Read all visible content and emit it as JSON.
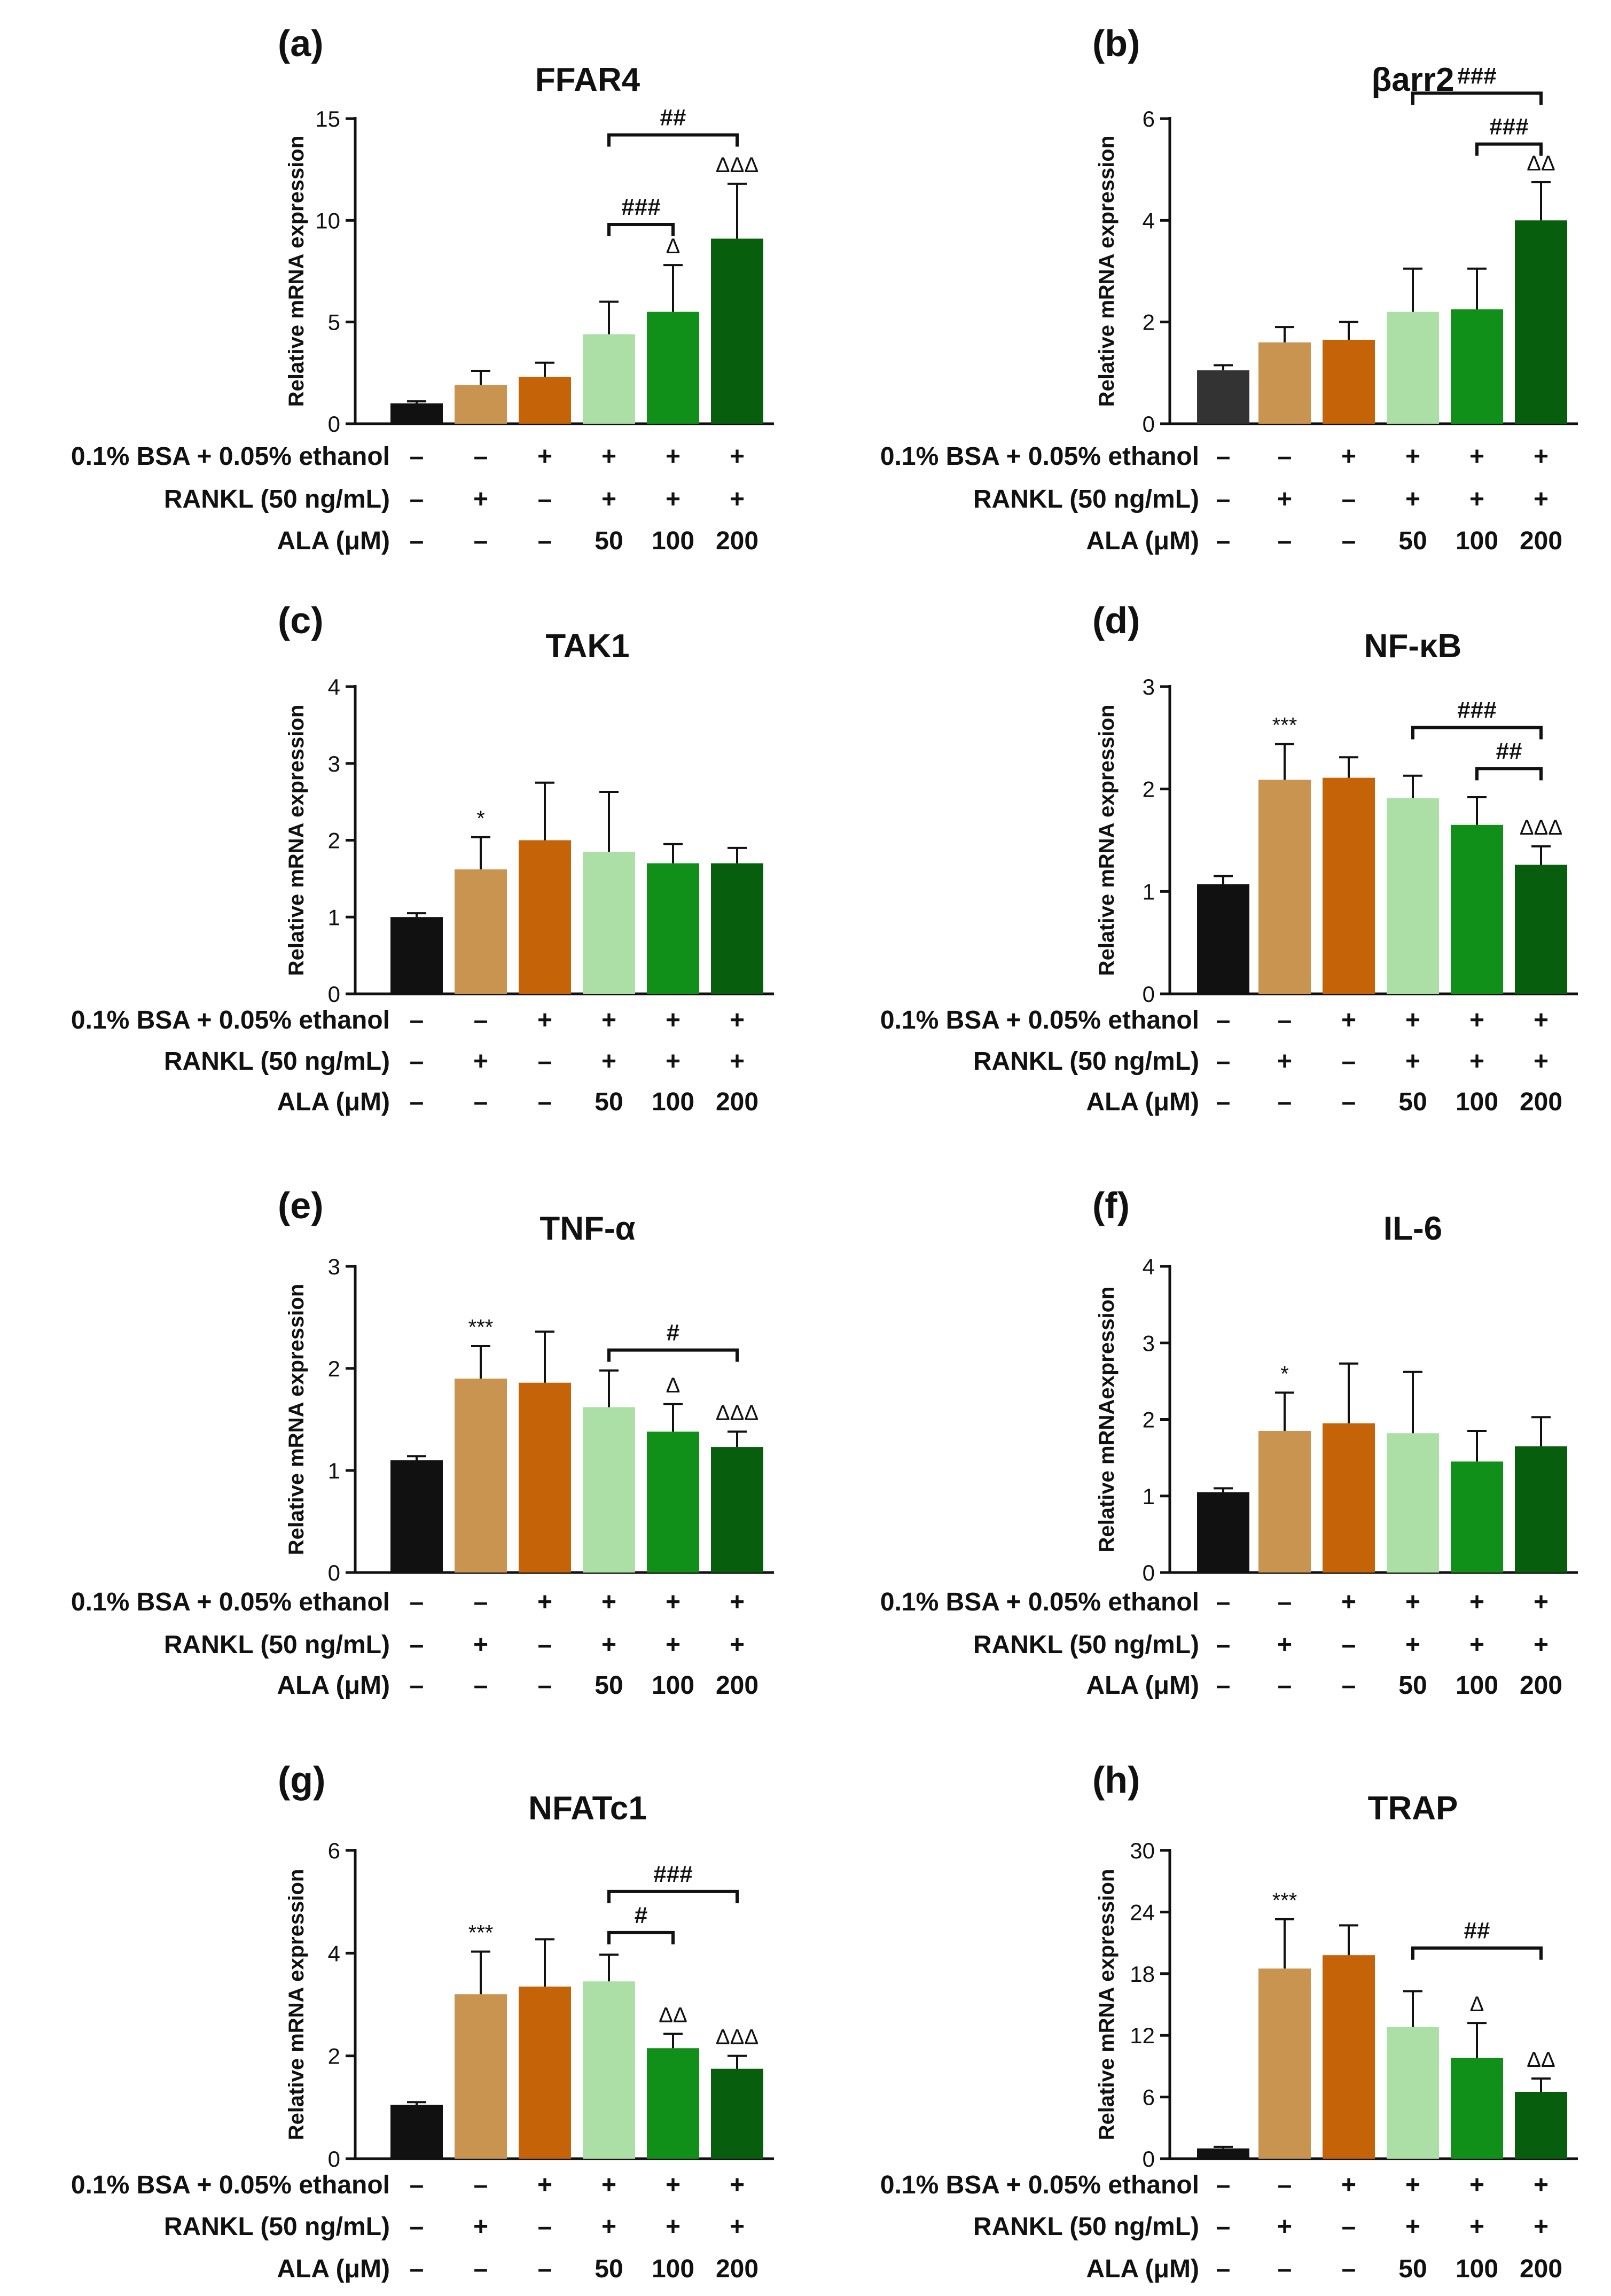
{
  "colors": {
    "black": "#111111",
    "dark_gray": "#333333",
    "tan": "#c8944f",
    "orange": "#c46308",
    "light_green": "#acdfa5",
    "green": "#109018",
    "dark_green": "#075f0e",
    "axis": "#111111"
  },
  "rows": {
    "bsa_label": "0.1% BSA + 0.05% ethanol",
    "rankl_label": "RANKL (50 ng/mL)",
    "ala_label": "ALA (μM)",
    "bsa_values": [
      "–",
      "–",
      "+",
      "+",
      "+",
      "+"
    ],
    "rankl_values": [
      "–",
      "+",
      "–",
      "+",
      "+",
      "+"
    ],
    "ala_values": [
      "–",
      "–",
      "–",
      "50",
      "100",
      "200"
    ]
  },
  "chart_data": [
    {
      "panel": "(a)",
      "type": "bar",
      "title": "FFAR4",
      "ylabel": "Relative mRNA expression",
      "ylim": [
        0,
        15
      ],
      "yticks": [
        "0",
        "5",
        "10",
        "15"
      ],
      "values": [
        1.0,
        1.9,
        2.3,
        4.4,
        5.5,
        9.1
      ],
      "errors": [
        0.1,
        0.7,
        0.7,
        1.6,
        2.3,
        2.7
      ],
      "bar_colors": [
        "#111111",
        "#c8944f",
        "#c46308",
        "#acdfa5",
        "#109018",
        "#075f0e"
      ],
      "marks": [
        {
          "bar": 4,
          "text": "Δ"
        },
        {
          "bar": 5,
          "text": "ΔΔΔ"
        }
      ],
      "comparisons": [
        {
          "from": 3,
          "to": 4,
          "text": "###",
          "y": 9.8
        },
        {
          "from": 3,
          "to": 5,
          "text": "##",
          "y": 14.2
        }
      ]
    },
    {
      "panel": "(b)",
      "type": "bar",
      "title": "βarr2",
      "ylabel": "Relative mRNA expression",
      "ylim": [
        0,
        6
      ],
      "yticks": [
        "0",
        "2",
        "4",
        "6"
      ],
      "values": [
        1.05,
        1.6,
        1.65,
        2.2,
        2.25,
        4.0
      ],
      "errors": [
        0.1,
        0.3,
        0.35,
        0.85,
        0.8,
        0.75
      ],
      "bar_colors": [
        "#333333",
        "#c8944f",
        "#c46308",
        "#acdfa5",
        "#109018",
        "#075f0e"
      ],
      "marks": [
        {
          "bar": 5,
          "text": "ΔΔ"
        }
      ],
      "comparisons": [
        {
          "from": 4,
          "to": 5,
          "text": "###",
          "y": 5.5
        },
        {
          "from": 3,
          "to": 5,
          "text": "###",
          "y": 6.5
        }
      ]
    },
    {
      "panel": "(c)",
      "type": "bar",
      "title": "TAK1",
      "ylabel": "Relative mRNA expression",
      "ylim": [
        0,
        4
      ],
      "yticks": [
        "0",
        "1",
        "2",
        "3",
        "4"
      ],
      "values": [
        1.0,
        1.62,
        2.0,
        1.85,
        1.7,
        1.7
      ],
      "errors": [
        0.05,
        0.42,
        0.75,
        0.78,
        0.25,
        0.2
      ],
      "bar_colors": [
        "#111111",
        "#c8944f",
        "#c46308",
        "#acdfa5",
        "#109018",
        "#075f0e"
      ],
      "marks": [
        {
          "bar": 1,
          "text": "*"
        }
      ],
      "comparisons": []
    },
    {
      "panel": "(d)",
      "type": "bar",
      "title": "NF-κB",
      "ylabel": "Relative mRNA expression",
      "ylim": [
        0,
        3
      ],
      "yticks": [
        "0",
        "1",
        "2",
        "3"
      ],
      "values": [
        1.07,
        2.09,
        2.11,
        1.91,
        1.65,
        1.26
      ],
      "errors": [
        0.08,
        0.35,
        0.2,
        0.22,
        0.27,
        0.18
      ],
      "bar_colors": [
        "#111111",
        "#c8944f",
        "#c46308",
        "#acdfa5",
        "#109018",
        "#075f0e"
      ],
      "marks": [
        {
          "bar": 1,
          "text": "***"
        },
        {
          "bar": 5,
          "text": "ΔΔΔ"
        }
      ],
      "comparisons": [
        {
          "from": 4,
          "to": 5,
          "text": "##",
          "y": 2.2
        },
        {
          "from": 3,
          "to": 5,
          "text": "###",
          "y": 2.6
        }
      ]
    },
    {
      "panel": "(e)",
      "type": "bar",
      "title": "TNF-α",
      "ylabel": "Relative mRNA expression",
      "ylim": [
        0,
        3
      ],
      "yticks": [
        "0",
        "1",
        "2",
        "3"
      ],
      "values": [
        1.1,
        1.9,
        1.86,
        1.62,
        1.38,
        1.23
      ],
      "errors": [
        0.04,
        0.32,
        0.5,
        0.36,
        0.27,
        0.15
      ],
      "bar_colors": [
        "#111111",
        "#c8944f",
        "#c46308",
        "#acdfa5",
        "#109018",
        "#075f0e"
      ],
      "marks": [
        {
          "bar": 1,
          "text": "***"
        },
        {
          "bar": 4,
          "text": "Δ"
        },
        {
          "bar": 5,
          "text": "ΔΔΔ"
        }
      ],
      "comparisons": [
        {
          "from": 3,
          "to": 5,
          "text": "#",
          "y": 2.18
        }
      ]
    },
    {
      "panel": "(f)",
      "type": "bar",
      "title": "IL-6",
      "ylabel": "Relative mRNAexpression",
      "ylim": [
        0,
        4
      ],
      "yticks": [
        "0",
        "1",
        "2",
        "3",
        "4"
      ],
      "values": [
        1.05,
        1.85,
        1.95,
        1.82,
        1.45,
        1.65
      ],
      "errors": [
        0.05,
        0.5,
        0.78,
        0.8,
        0.4,
        0.38
      ],
      "bar_colors": [
        "#111111",
        "#c8944f",
        "#c46308",
        "#acdfa5",
        "#109018",
        "#075f0e"
      ],
      "marks": [
        {
          "bar": 1,
          "text": "*"
        }
      ],
      "comparisons": []
    },
    {
      "panel": "(g)",
      "type": "bar",
      "title": "NFATc1",
      "ylabel": "Relative mRNA expression",
      "ylim": [
        0,
        6
      ],
      "yticks": [
        "0",
        "2",
        "4",
        "6"
      ],
      "values": [
        1.05,
        3.2,
        3.35,
        3.45,
        2.15,
        1.75
      ],
      "errors": [
        0.05,
        0.83,
        0.92,
        0.52,
        0.28,
        0.25
      ],
      "bar_colors": [
        "#111111",
        "#c8944f",
        "#c46308",
        "#acdfa5",
        "#109018",
        "#075f0e"
      ],
      "marks": [
        {
          "bar": 1,
          "text": "***"
        },
        {
          "bar": 4,
          "text": "ΔΔ"
        },
        {
          "bar": 5,
          "text": "ΔΔΔ"
        }
      ],
      "comparisons": [
        {
          "from": 3,
          "to": 4,
          "text": "#",
          "y": 4.4
        },
        {
          "from": 3,
          "to": 5,
          "text": "###",
          "y": 5.2
        }
      ]
    },
    {
      "panel": "(h)",
      "type": "bar",
      "title": "TRAP",
      "ylabel": "Relative mRNA expression",
      "ylim": [
        0,
        30
      ],
      "yticks": [
        "0",
        "6",
        "12",
        "18",
        "24",
        "30"
      ],
      "values": [
        1.0,
        18.5,
        19.8,
        12.8,
        9.8,
        6.5
      ],
      "errors": [
        0.15,
        4.8,
        2.9,
        3.5,
        3.4,
        1.3
      ],
      "bar_colors": [
        "#111111",
        "#c8944f",
        "#c46308",
        "#acdfa5",
        "#109018",
        "#075f0e"
      ],
      "marks": [
        {
          "bar": 1,
          "text": "***"
        },
        {
          "bar": 4,
          "text": "Δ"
        },
        {
          "bar": 5,
          "text": "ΔΔ"
        }
      ],
      "comparisons": [
        {
          "from": 3,
          "to": 5,
          "text": "##",
          "y": 20.5
        }
      ]
    }
  ]
}
